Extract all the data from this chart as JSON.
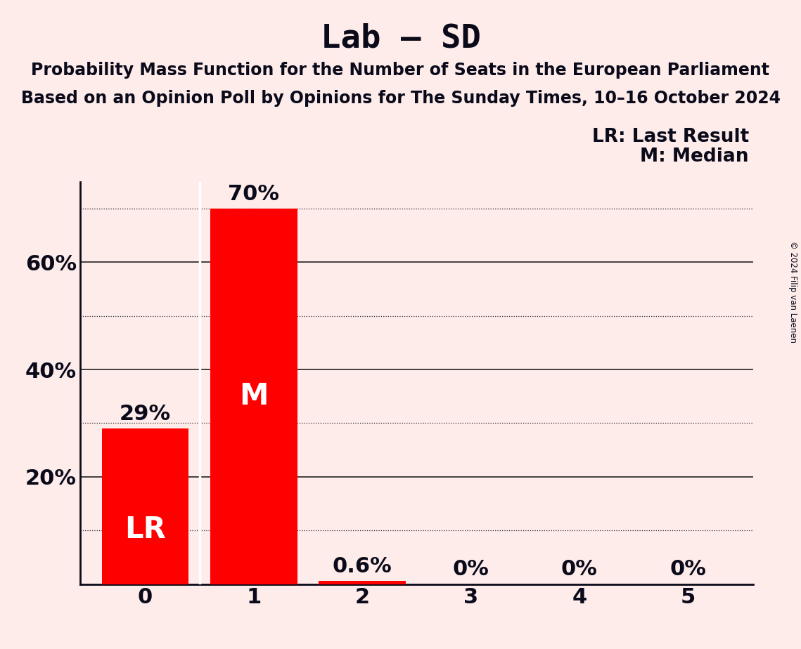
{
  "title": "Lab – SD",
  "subtitle1": "Probability Mass Function for the Number of Seats in the European Parliament",
  "subtitle2": "Based on an Opinion Poll by Opinions for The Sunday Times, 10–16 October 2024",
  "copyright": "© 2024 Filip van Laenen",
  "categories": [
    0,
    1,
    2,
    3,
    4,
    5
  ],
  "values": [
    29.0,
    70.0,
    0.6,
    0.0,
    0.0,
    0.0
  ],
  "labels": [
    "29%",
    "70%",
    "0.6%",
    "0%",
    "0%",
    "0%"
  ],
  "bar_color": "#ff0000",
  "background_color": "#fdecea",
  "text_color": "#0a0a1a",
  "label_above_color": "#0a0a1a",
  "label_inside_color": "#ffffff",
  "lr_bar": 0,
  "median_bar": 1,
  "lr_label": "LR",
  "median_label": "M",
  "legend_lr": "LR: Last Result",
  "legend_m": "M: Median",
  "ylim": [
    0,
    75
  ],
  "solid_yticks": [
    0,
    20,
    40,
    60
  ],
  "dotted_yticks": [
    10,
    30,
    50,
    70
  ],
  "ytick_labels": [
    20,
    40,
    60
  ],
  "divider_color": "#ffffff",
  "solid_grid_color": "#222222",
  "dotted_grid_color": "#222222",
  "title_fontsize": 34,
  "subtitle_fontsize": 17,
  "axis_fontsize": 22,
  "bar_label_fontsize": 22,
  "inside_label_fontsize": 30,
  "legend_fontsize": 19
}
